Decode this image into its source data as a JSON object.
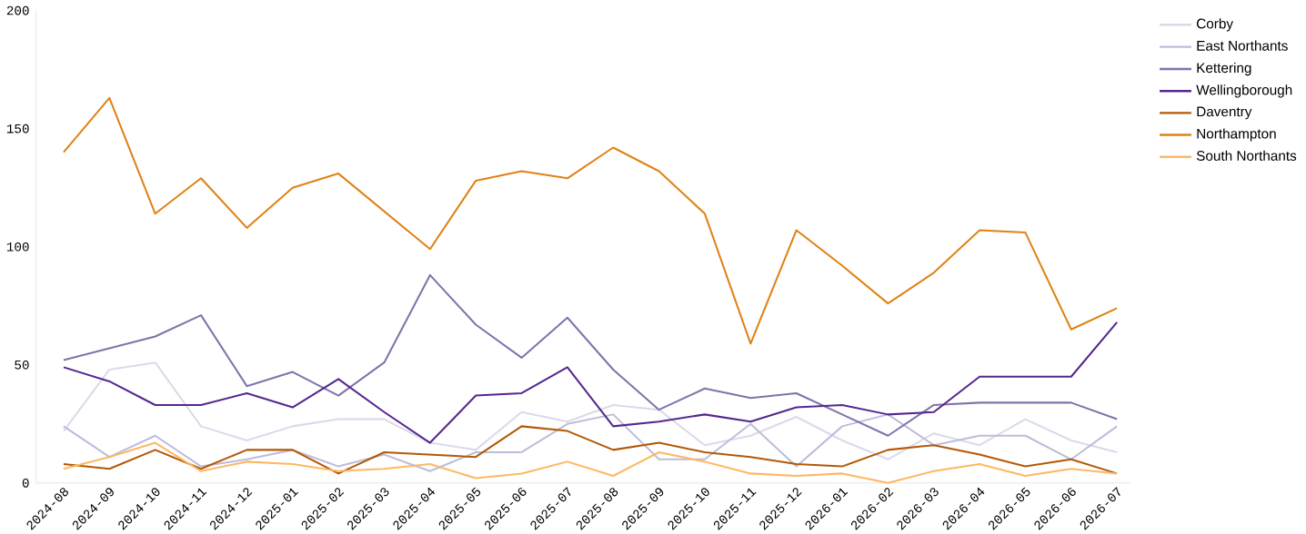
{
  "chart_data": {
    "type": "line",
    "categories": [
      "2024-08",
      "2024-09",
      "2024-10",
      "2024-11",
      "2024-12",
      "2025-01",
      "2025-02",
      "2025-03",
      "2025-04",
      "2025-05",
      "2025-06",
      "2025-07",
      "2025-08",
      "2025-09",
      "2025-10",
      "2025-11",
      "2025-12",
      "2026-01",
      "2026-02",
      "2026-03",
      "2026-04",
      "2026-05",
      "2026-06",
      "2026-07"
    ],
    "series": [
      {
        "name": "Corby",
        "color": "#dadaeb",
        "values": [
          22,
          48,
          51,
          24,
          18,
          24,
          27,
          27,
          17,
          14,
          30,
          26,
          33,
          31,
          16,
          20,
          28,
          18,
          10,
          21,
          16,
          27,
          18,
          13
        ]
      },
      {
        "name": "East Northants",
        "color": "#bcbddc",
        "values": [
          24,
          11,
          20,
          7,
          10,
          14,
          7,
          12,
          5,
          13,
          13,
          25,
          29,
          10,
          10,
          25,
          7,
          24,
          29,
          16,
          20,
          20,
          10,
          24
        ]
      },
      {
        "name": "Kettering",
        "color": "#8073ac",
        "values": [
          52,
          57,
          62,
          71,
          41,
          47,
          37,
          51,
          88,
          67,
          53,
          70,
          48,
          31,
          40,
          36,
          38,
          29,
          20,
          33,
          34,
          34,
          34,
          27
        ]
      },
      {
        "name": "Wellingborough",
        "color": "#54278f",
        "values": [
          49,
          43,
          33,
          33,
          38,
          32,
          44,
          30,
          17,
          37,
          38,
          49,
          24,
          26,
          29,
          26,
          32,
          33,
          29,
          30,
          45,
          45,
          45,
          68
        ]
      },
      {
        "name": "Daventry",
        "color": "#b35806",
        "values": [
          8,
          6,
          14,
          6,
          14,
          14,
          4,
          13,
          12,
          11,
          24,
          22,
          14,
          17,
          13,
          11,
          8,
          7,
          14,
          16,
          12,
          7,
          10,
          4
        ]
      },
      {
        "name": "Northampton",
        "color": "#e08214",
        "values": [
          140,
          163,
          114,
          129,
          108,
          125,
          131,
          115,
          99,
          128,
          132,
          129,
          142,
          132,
          114,
          59,
          107,
          92,
          76,
          89,
          107,
          106,
          65,
          74
        ]
      },
      {
        "name": "South Northants",
        "color": "#fdb863",
        "values": [
          6,
          11,
          17,
          5,
          9,
          8,
          5,
          6,
          8,
          2,
          4,
          9,
          3,
          13,
          9,
          4,
          3,
          4,
          0,
          5,
          8,
          3,
          6,
          4
        ]
      }
    ],
    "ylim": [
      0,
      200
    ],
    "yticks": [
      0,
      50,
      100,
      150,
      200
    ],
    "grid": false,
    "legend": "top right",
    "marker": "none",
    "line_style": "solid"
  }
}
